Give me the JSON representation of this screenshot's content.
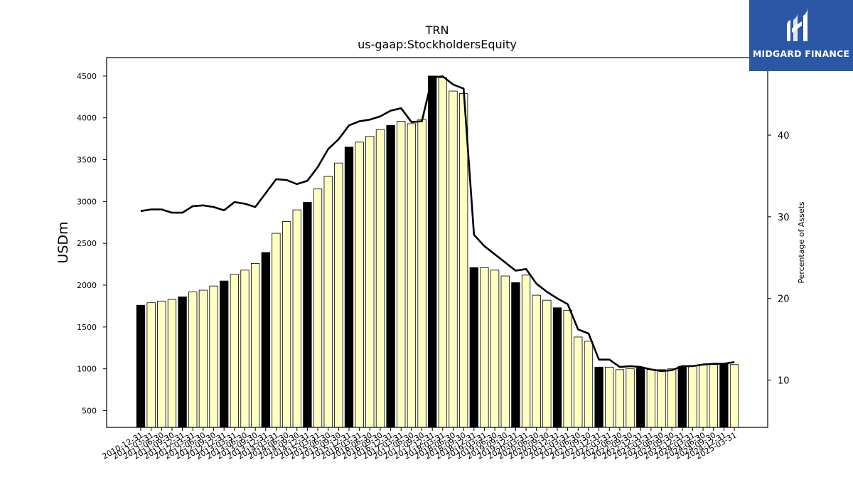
{
  "brand": {
    "name": "MIDGARD FINANCE",
    "background": "#2b57a6"
  },
  "chart_data": {
    "type": "bar",
    "title": "TRN",
    "subtitle": "us-gaap:StockholdersEquity",
    "ylabel": "USDm",
    "ylabel_right": "Percentage of Assets",
    "ylim": [
      300,
      4720
    ],
    "ylim_right": [
      4.2,
      49.5
    ],
    "yticks": [
      500,
      1000,
      1500,
      2000,
      2500,
      3000,
      3500,
      4000,
      4500
    ],
    "yticks_right": [
      10,
      20,
      30,
      40
    ],
    "grid": false,
    "colors": {
      "annual": "#000000",
      "quarterly": "#ffffc0",
      "line": "#000000"
    },
    "categories": [
      "2010-12-31",
      "2011-03-31",
      "2011-06-30",
      "2011-09-30",
      "2011-12-31",
      "2012-03-31",
      "2012-06-30",
      "2012-09-30",
      "2012-12-31",
      "2013-03-31",
      "2013-06-30",
      "2013-09-30",
      "2013-12-31",
      "2014-03-31",
      "2014-06-30",
      "2014-09-30",
      "2014-12-31",
      "2015-03-31",
      "2015-06-30",
      "2015-09-30",
      "2015-12-31",
      "2016-03-31",
      "2016-06-30",
      "2016-09-30",
      "2016-12-31",
      "2017-03-31",
      "2017-06-30",
      "2017-09-30",
      "2017-12-31",
      "2018-03-31",
      "2018-06-30",
      "2018-09-30",
      "2018-12-31",
      "2019-03-31",
      "2019-06-30",
      "2019-09-30",
      "2019-12-31",
      "2020-03-31",
      "2020-06-30",
      "2020-09-30",
      "2020-12-31",
      "2021-03-31",
      "2021-06-30",
      "2021-09-30",
      "2021-12-31",
      "2022-03-31",
      "2022-06-30",
      "2022-09-30",
      "2022-12-31",
      "2023-03-31",
      "2023-06-30",
      "2023-09-30",
      "2023-12-31",
      "2024-03-31",
      "2024-06-30",
      "2024-09-30",
      "2024-12-31",
      "2025-03-31"
    ],
    "series": [
      {
        "type": "bar",
        "values": [
          1760,
          1790,
          1810,
          1830,
          1860,
          1920,
          1940,
          1990,
          2050,
          2130,
          2180,
          2260,
          2390,
          2620,
          2760,
          2900,
          2990,
          3150,
          3300,
          3460,
          3650,
          3710,
          3780,
          3860,
          3910,
          3960,
          3930,
          3980,
          4500,
          4480,
          4320,
          4290,
          2210,
          2210,
          2180,
          2110,
          2030,
          2120,
          1880,
          1820,
          1730,
          1700,
          1380,
          1330,
          1020,
          1020,
          990,
          1000,
          1010,
          990,
          990,
          1000,
          1030,
          1040,
          1050,
          1050,
          1060,
          1050
        ],
        "annual_flags": [
          1,
          0,
          0,
          0,
          1,
          0,
          0,
          0,
          1,
          0,
          0,
          0,
          1,
          0,
          0,
          0,
          1,
          0,
          0,
          0,
          1,
          0,
          0,
          0,
          1,
          0,
          0,
          0,
          1,
          0,
          0,
          0,
          1,
          0,
          0,
          0,
          1,
          0,
          0,
          0,
          1,
          0,
          0,
          0,
          1,
          0,
          0,
          0,
          1,
          0,
          0,
          0,
          1,
          0,
          0,
          0,
          1,
          0
        ]
      },
      {
        "type": "line",
        "axis": "right",
        "values": [
          30.7,
          30.9,
          30.9,
          30.5,
          30.5,
          31.3,
          31.4,
          31.2,
          30.8,
          31.8,
          31.6,
          31.2,
          32.9,
          34.6,
          34.5,
          34.0,
          34.4,
          36.1,
          38.3,
          39.5,
          41.2,
          41.7,
          41.9,
          42.3,
          43.0,
          43.3,
          41.6,
          41.7,
          47.1,
          47.2,
          46.2,
          45.7,
          27.8,
          26.4,
          25.4,
          24.4,
          23.4,
          23.6,
          21.8,
          20.8,
          20.0,
          19.3,
          16.2,
          15.7,
          12.5,
          12.5,
          11.6,
          11.7,
          11.6,
          11.3,
          11.1,
          11.2,
          11.7,
          11.7,
          11.9,
          12.0,
          12.0,
          12.2
        ]
      }
    ]
  }
}
